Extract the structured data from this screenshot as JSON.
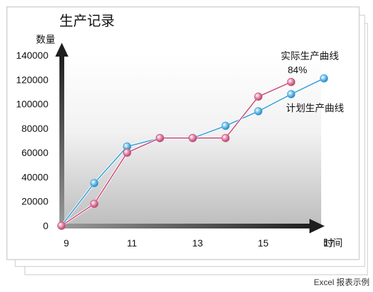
{
  "chart_data": {
    "type": "line",
    "title": "生产记录",
    "ylabel": "数量",
    "xlabel": "时间",
    "ylim": [
      0,
      140000
    ],
    "xlim": [
      9,
      17
    ],
    "y_ticks": [
      0,
      20000,
      40000,
      60000,
      80000,
      100000,
      120000,
      140000
    ],
    "x_ticks": [
      9,
      11,
      13,
      15,
      17
    ],
    "grid": false,
    "series": [
      {
        "name": "实际生产曲线",
        "color": "#c8507d",
        "x": [
          9,
          10,
          11,
          12,
          13,
          14,
          15,
          16
        ],
        "values": [
          0,
          18000,
          60000,
          72000,
          72000,
          72000,
          106000,
          118000
        ],
        "annotation": "84%"
      },
      {
        "name": "计划生产曲线",
        "color": "#3aa0d8",
        "x": [
          9,
          10,
          11,
          12,
          13,
          14,
          15,
          16,
          17
        ],
        "values": [
          0,
          35000,
          65000,
          72000,
          72000,
          82000,
          94000,
          108000,
          121000
        ]
      }
    ]
  },
  "footer": {
    "caption": "Excel 报表示例"
  }
}
